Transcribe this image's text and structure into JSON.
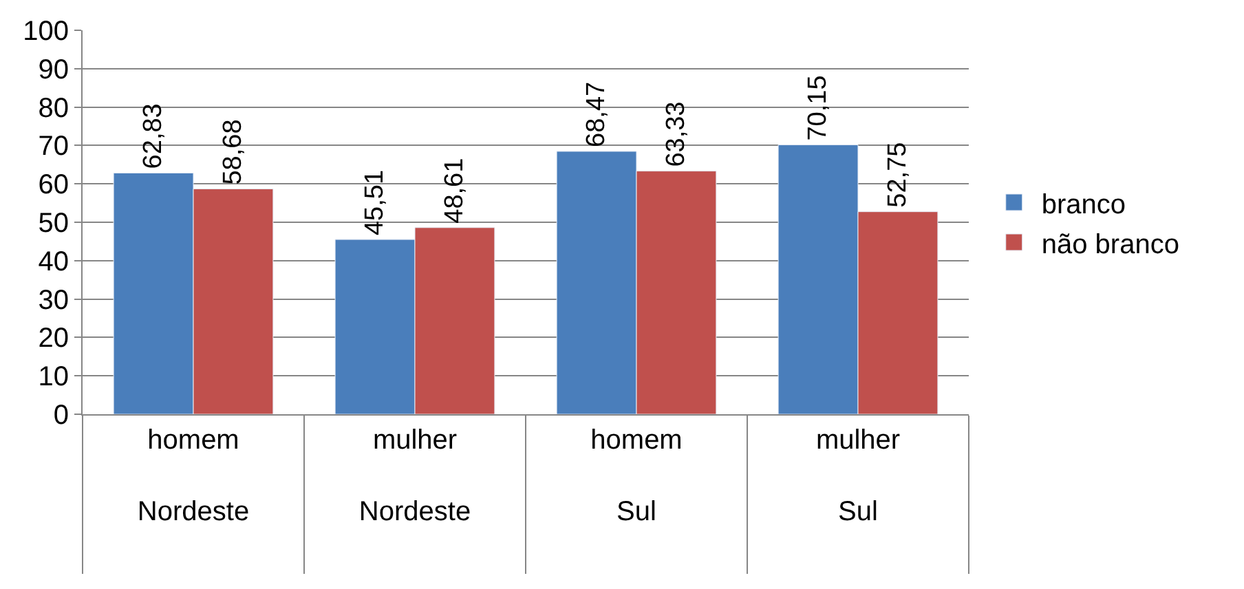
{
  "chart_data": {
    "type": "bar",
    "categories": [
      "homem\nNordeste",
      "mulher\nNordeste",
      "homem\nSul",
      "mulher\nSul"
    ],
    "series": [
      {
        "name": "branco",
        "color": "#4a7ebb",
        "values": [
          62.83,
          45.51,
          68.47,
          70.15
        ],
        "value_labels": [
          "62,83",
          "45,51",
          "68,47",
          "70,15"
        ]
      },
      {
        "name": "não branco",
        "color": "#c0504d",
        "values": [
          58.68,
          48.61,
          63.33,
          52.75
        ],
        "value_labels": [
          "58,68",
          "48,61",
          "63,33",
          "52,75"
        ]
      }
    ],
    "ylim": [
      0,
      100
    ],
    "yticks": [
      0,
      10,
      20,
      30,
      40,
      50,
      60,
      70,
      80,
      90,
      100
    ],
    "grid": "y",
    "legend": "right"
  }
}
